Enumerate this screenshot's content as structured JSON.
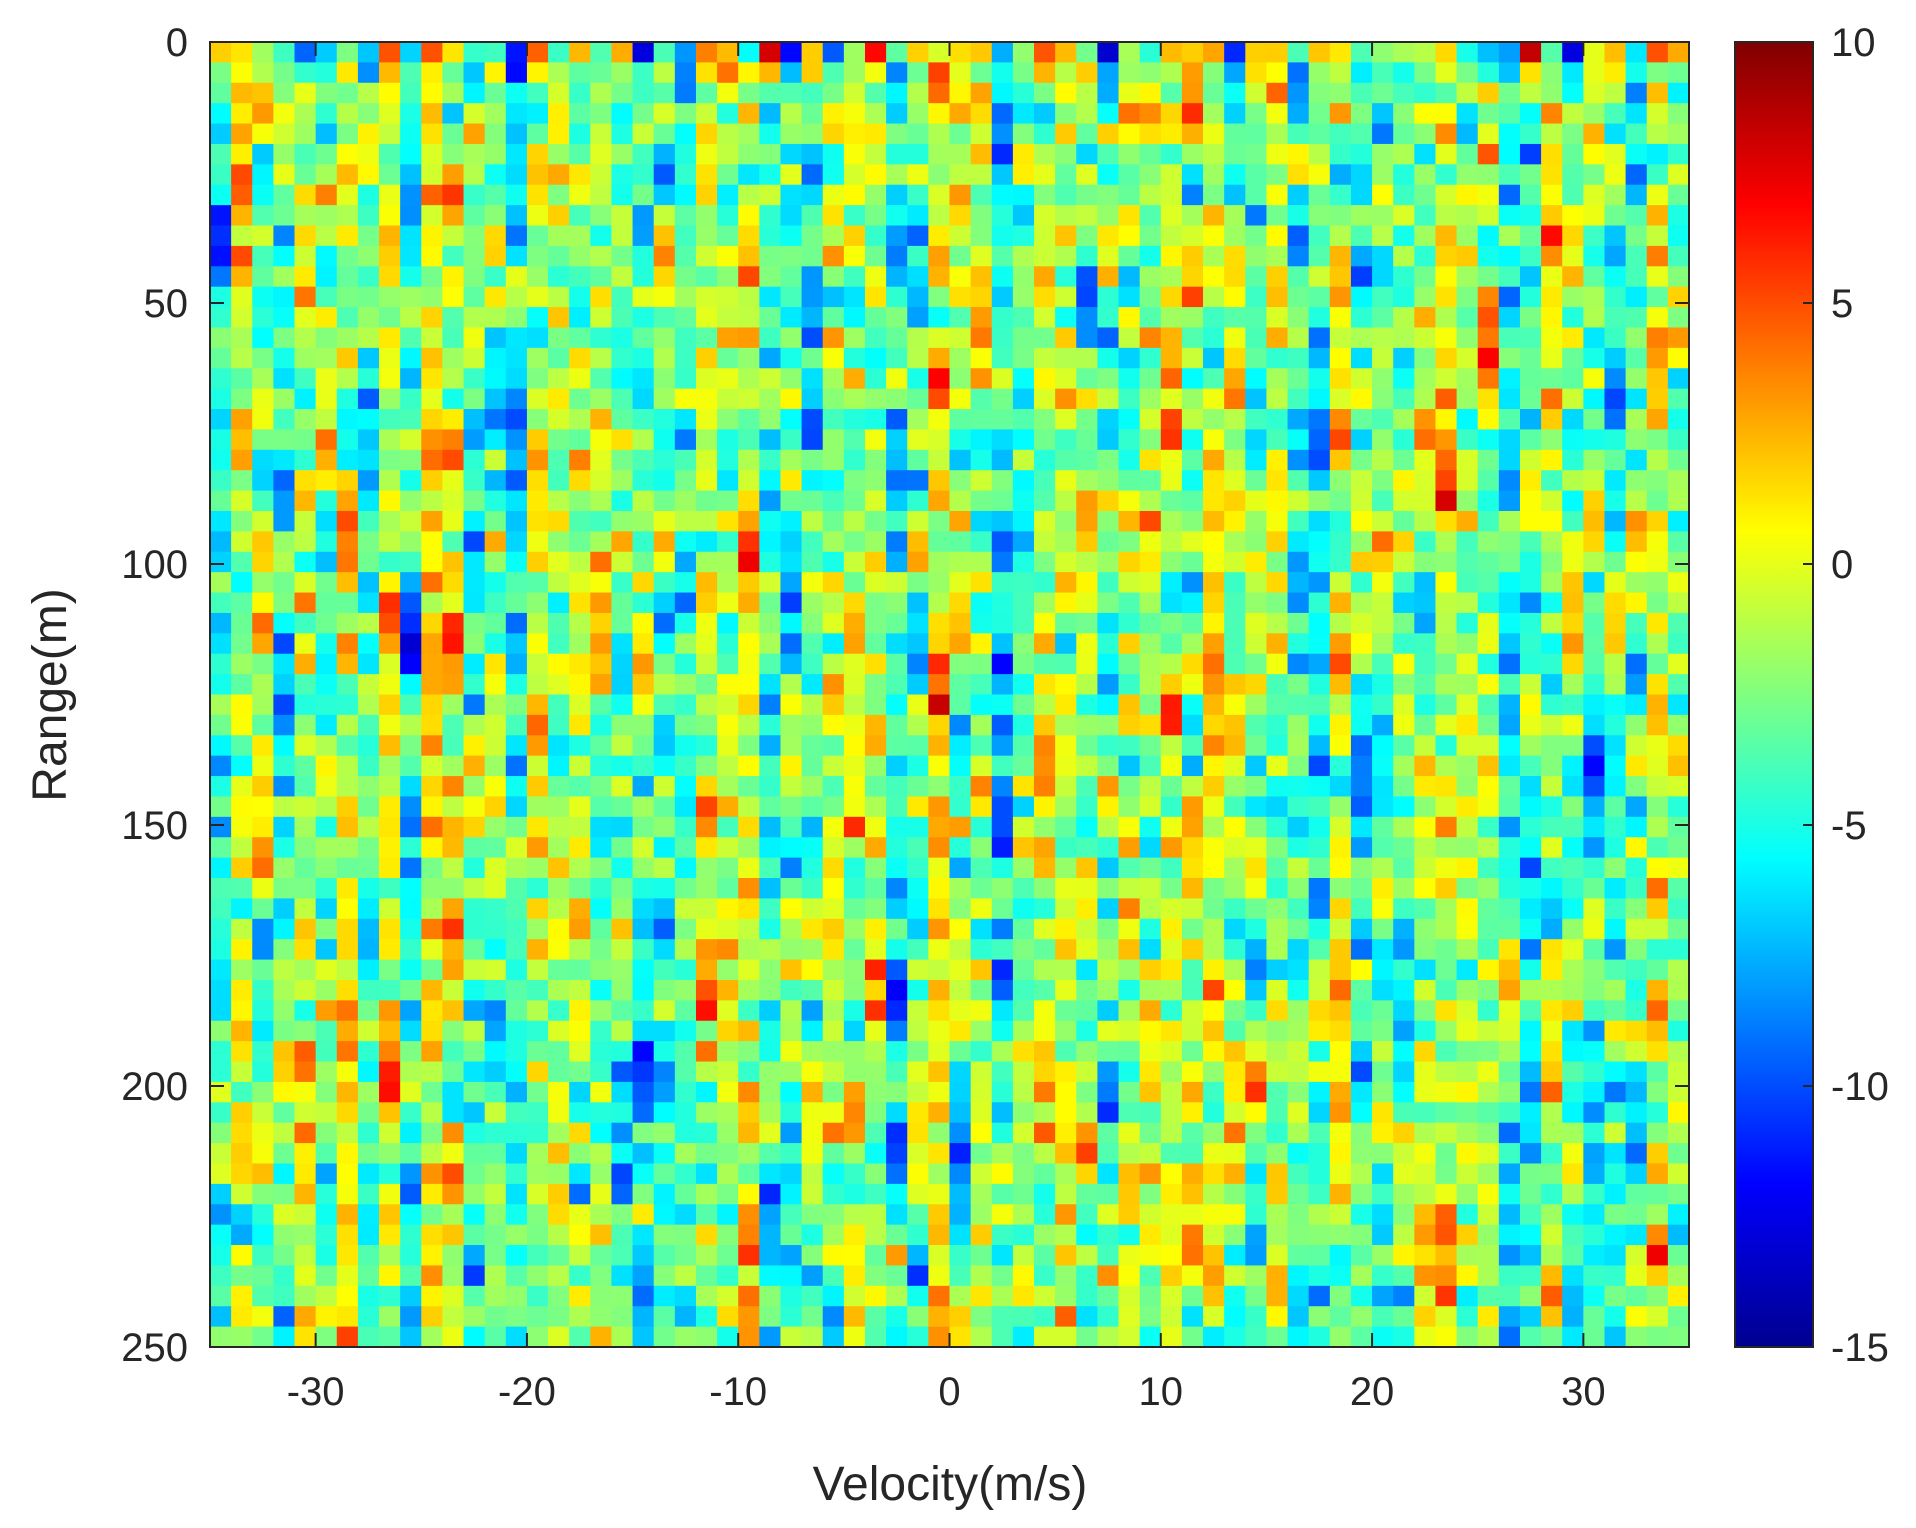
{
  "chart_data": {
    "type": "heatmap",
    "title": "",
    "xlabel": "Velocity(m/s)",
    "ylabel": "Range(m)",
    "xlim": [
      -35,
      35
    ],
    "ylim": [
      0,
      250
    ],
    "y_direction": "reversed",
    "xticks": [
      -30,
      -20,
      -10,
      0,
      10,
      20,
      30
    ],
    "xtick_labels": [
      "-30",
      "-20",
      "-10",
      "0",
      "10",
      "20",
      "30"
    ],
    "yticks": [
      0,
      50,
      100,
      150,
      200,
      250
    ],
    "ytick_labels": [
      "0",
      "50",
      "100",
      "150",
      "200",
      "250"
    ],
    "colorbar": {
      "colormap": "jet",
      "clim": [
        -15,
        10
      ],
      "ticks": [
        -15,
        -10,
        -5,
        0,
        5,
        10
      ],
      "tick_labels": [
        "-15",
        "-10",
        "-5",
        "0",
        "5",
        "10"
      ]
    },
    "grid": false,
    "legend": "none",
    "cells": {
      "cols": 70,
      "rows": 64,
      "value_range": [
        -15,
        10
      ],
      "note_pattern": "speckled noise with vertical streaks"
    }
  }
}
